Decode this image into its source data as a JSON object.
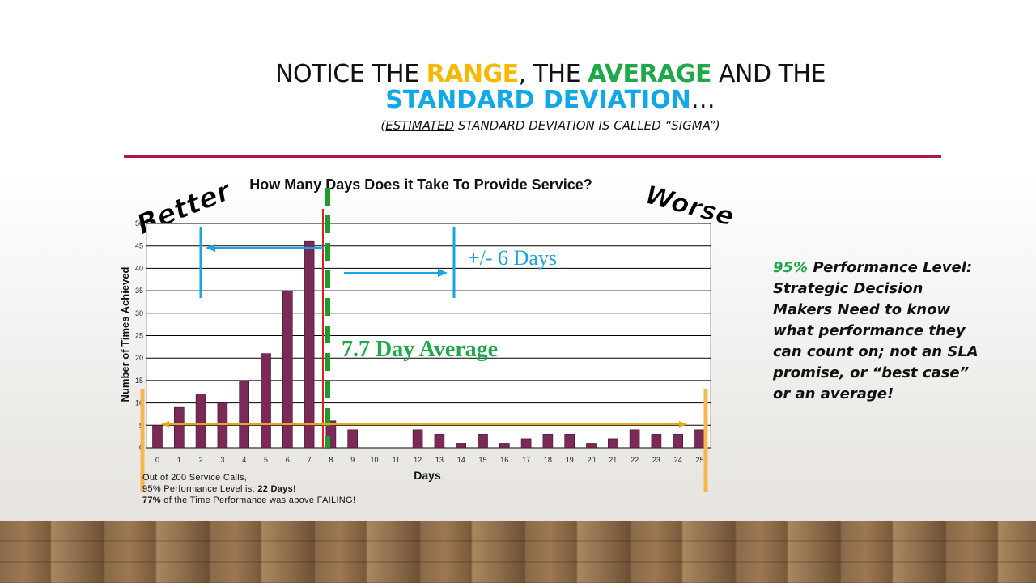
{
  "title": {
    "line1_pre": "NOTICE THE ",
    "range": "RANGE",
    "line1_mid": ", THE ",
    "average": "AVERAGE",
    "line1_post": " AND THE",
    "std": "STANDARD DEVIATION",
    "ellipsis": "…",
    "subtitle_open": "(",
    "subtitle_underlined": "ESTIMATED",
    "subtitle_rest": " STANDARD DEVIATION IS CALLED “SIGMA”)"
  },
  "colors": {
    "range": "#f6b800",
    "average": "#1ea84a",
    "std": "#10a8e8",
    "bars": "#7b2a57",
    "rule": "#b0173e",
    "mean_line": "#e0201e",
    "sigma_blue": "#1aa3e8",
    "range_orange": "#f5b84f"
  },
  "right_text": {
    "pct": "95%",
    "text": " Performance Level: Strategic Decision Makers Need to know what performance they can count on; not an SLA promise, or “best case” or an average!"
  },
  "annotations": {
    "better": "Better",
    "worse": "Worse",
    "sigma": "+/- 6 Days",
    "average": "7.7 Day Average"
  },
  "footnote": {
    "line1": "Out of 200 Service Calls,",
    "line2_pre": "95% Performance Level is:  ",
    "line2_bold": "22 Days!",
    "line3_bold": "77%",
    "line3_rest": " of the Time Performance was above FAILING!"
  },
  "chart_data": {
    "type": "bar",
    "title": "How Many Days Does it Take To Provide Service?",
    "xlabel": "Days",
    "ylabel": "Number of Times Achieved",
    "categories": [
      "0",
      "1",
      "2",
      "3",
      "4",
      "5",
      "6",
      "7",
      "8",
      "9",
      "10",
      "11",
      "12",
      "13",
      "14",
      "15",
      "16",
      "17",
      "18",
      "19",
      "20",
      "21",
      "22",
      "23",
      "24",
      "25"
    ],
    "values": [
      5,
      9,
      12,
      10,
      15,
      21,
      35,
      46,
      6,
      4,
      0,
      0,
      4,
      3,
      1,
      3,
      1,
      2,
      3,
      3,
      1,
      2,
      4,
      3,
      3,
      4
    ],
    "ylim": [
      0,
      50
    ],
    "yticks": [
      0,
      5,
      10,
      15,
      20,
      25,
      30,
      35,
      40,
      45,
      50
    ],
    "grid": true,
    "mean": 7.7
  }
}
